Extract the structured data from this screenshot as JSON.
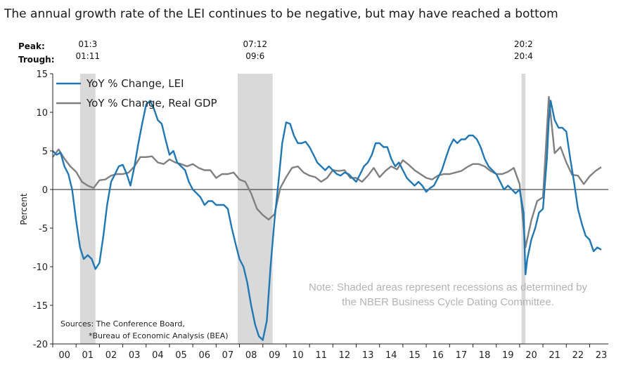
{
  "chart_data": {
    "type": "line",
    "title": "The annual growth rate of the LEI continues to be negative, but may have reached a bottom",
    "ylabel": "Percent",
    "ylim": [
      -20,
      15
    ],
    "yticks": [
      15,
      10,
      5,
      0,
      -5,
      -10,
      -15,
      -20
    ],
    "xlim": [
      2000.0,
      2023.8
    ],
    "x_tick_labels": [
      "00",
      "01",
      "02",
      "03",
      "04",
      "05",
      "06",
      "07",
      "08",
      "09",
      "10",
      "11",
      "12",
      "13",
      "14",
      "15",
      "16",
      "17",
      "18",
      "19",
      "20",
      "21",
      "22",
      "23"
    ],
    "peak_label": "Peak:",
    "trough_label": "Trough:",
    "recessions": [
      {
        "start": 2001.17,
        "end": 2001.83,
        "peak": "01:3",
        "trough": "01:11"
      },
      {
        "start": 2007.92,
        "end": 2009.42,
        "peak": "07:12",
        "trough": "09:6"
      },
      {
        "start": 2020.08,
        "end": 2020.25,
        "peak": "20:2",
        "trough": "20:4"
      }
    ],
    "legend_position": "top-left",
    "series": [
      {
        "name": "YoY % Change, LEI",
        "color": "#1f77b4",
        "points": [
          [
            2000.0,
            5.0
          ],
          [
            2000.17,
            4.5
          ],
          [
            2000.33,
            4.8
          ],
          [
            2000.5,
            3.0
          ],
          [
            2000.67,
            2.0
          ],
          [
            2000.83,
            0.0
          ],
          [
            2001.0,
            -4.0
          ],
          [
            2001.17,
            -7.5
          ],
          [
            2001.33,
            -9.0
          ],
          [
            2001.5,
            -8.5
          ],
          [
            2001.67,
            -9.0
          ],
          [
            2001.83,
            -10.3
          ],
          [
            2002.0,
            -9.5
          ],
          [
            2002.17,
            -6.0
          ],
          [
            2002.33,
            -2.0
          ],
          [
            2002.5,
            1.0
          ],
          [
            2002.67,
            2.0
          ],
          [
            2002.83,
            3.0
          ],
          [
            2003.0,
            3.2
          ],
          [
            2003.17,
            2.0
          ],
          [
            2003.33,
            0.5
          ],
          [
            2003.5,
            3.0
          ],
          [
            2003.67,
            6.0
          ],
          [
            2003.83,
            8.5
          ],
          [
            2004.0,
            11.0
          ],
          [
            2004.17,
            11.5
          ],
          [
            2004.33,
            10.5
          ],
          [
            2004.5,
            9.0
          ],
          [
            2004.67,
            8.5
          ],
          [
            2004.83,
            6.5
          ],
          [
            2005.0,
            4.5
          ],
          [
            2005.17,
            5.0
          ],
          [
            2005.33,
            3.5
          ],
          [
            2005.5,
            3.0
          ],
          [
            2005.67,
            2.5
          ],
          [
            2005.83,
            1.0
          ],
          [
            2006.0,
            0.0
          ],
          [
            2006.17,
            -0.5
          ],
          [
            2006.33,
            -1.0
          ],
          [
            2006.5,
            -2.0
          ],
          [
            2006.67,
            -1.5
          ],
          [
            2006.83,
            -1.5
          ],
          [
            2007.0,
            -2.0
          ],
          [
            2007.17,
            -2.0
          ],
          [
            2007.33,
            -2.0
          ],
          [
            2007.5,
            -2.5
          ],
          [
            2007.67,
            -5.0
          ],
          [
            2007.83,
            -7.0
          ],
          [
            2008.0,
            -9.0
          ],
          [
            2008.17,
            -10.0
          ],
          [
            2008.33,
            -12.0
          ],
          [
            2008.5,
            -15.0
          ],
          [
            2008.67,
            -17.5
          ],
          [
            2008.83,
            -19.0
          ],
          [
            2009.0,
            -19.5
          ],
          [
            2009.17,
            -17.0
          ],
          [
            2009.33,
            -10.0
          ],
          [
            2009.5,
            -4.0
          ],
          [
            2009.67,
            1.0
          ],
          [
            2009.83,
            6.0
          ],
          [
            2010.0,
            8.7
          ],
          [
            2010.17,
            8.5
          ],
          [
            2010.33,
            7.0
          ],
          [
            2010.5,
            6.0
          ],
          [
            2010.67,
            6.0
          ],
          [
            2010.83,
            6.2
          ],
          [
            2011.0,
            5.5
          ],
          [
            2011.17,
            4.5
          ],
          [
            2011.33,
            3.5
          ],
          [
            2011.5,
            3.0
          ],
          [
            2011.67,
            2.5
          ],
          [
            2011.83,
            3.0
          ],
          [
            2012.0,
            2.5
          ],
          [
            2012.17,
            2.0
          ],
          [
            2012.33,
            1.8
          ],
          [
            2012.5,
            2.2
          ],
          [
            2012.67,
            2.0
          ],
          [
            2012.83,
            1.5
          ],
          [
            2013.0,
            1.0
          ],
          [
            2013.17,
            2.0
          ],
          [
            2013.33,
            3.0
          ],
          [
            2013.5,
            3.5
          ],
          [
            2013.67,
            4.5
          ],
          [
            2013.83,
            6.0
          ],
          [
            2014.0,
            6.0
          ],
          [
            2014.17,
            5.5
          ],
          [
            2014.33,
            5.5
          ],
          [
            2014.5,
            4.0
          ],
          [
            2014.67,
            3.0
          ],
          [
            2014.83,
            3.5
          ],
          [
            2015.0,
            2.5
          ],
          [
            2015.17,
            1.5
          ],
          [
            2015.33,
            1.0
          ],
          [
            2015.5,
            0.5
          ],
          [
            2015.67,
            1.0
          ],
          [
            2015.83,
            0.5
          ],
          [
            2016.0,
            -0.3
          ],
          [
            2016.17,
            0.2
          ],
          [
            2016.33,
            0.5
          ],
          [
            2016.5,
            1.5
          ],
          [
            2016.67,
            2.5
          ],
          [
            2016.83,
            4.0
          ],
          [
            2017.0,
            5.5
          ],
          [
            2017.17,
            6.5
          ],
          [
            2017.33,
            6.0
          ],
          [
            2017.5,
            6.5
          ],
          [
            2017.67,
            6.5
          ],
          [
            2017.83,
            7.0
          ],
          [
            2018.0,
            7.0
          ],
          [
            2018.17,
            6.5
          ],
          [
            2018.33,
            5.5
          ],
          [
            2018.5,
            4.0
          ],
          [
            2018.67,
            3.0
          ],
          [
            2018.83,
            2.5
          ],
          [
            2019.0,
            2.0
          ],
          [
            2019.17,
            1.0
          ],
          [
            2019.33,
            0.0
          ],
          [
            2019.5,
            0.5
          ],
          [
            2019.67,
            0.0
          ],
          [
            2019.83,
            -0.5
          ],
          [
            2020.0,
            0.0
          ],
          [
            2020.17,
            -3.0
          ],
          [
            2020.25,
            -11.0
          ],
          [
            2020.33,
            -9.0
          ],
          [
            2020.5,
            -6.5
          ],
          [
            2020.67,
            -5.0
          ],
          [
            2020.83,
            -3.0
          ],
          [
            2021.0,
            -2.5
          ],
          [
            2021.17,
            4.0
          ],
          [
            2021.25,
            9.0
          ],
          [
            2021.33,
            11.5
          ],
          [
            2021.5,
            9.0
          ],
          [
            2021.67,
            8.0
          ],
          [
            2021.83,
            8.0
          ],
          [
            2022.0,
            7.5
          ],
          [
            2022.17,
            4.0
          ],
          [
            2022.33,
            1.0
          ],
          [
            2022.5,
            -2.5
          ],
          [
            2022.67,
            -4.5
          ],
          [
            2022.83,
            -6.0
          ],
          [
            2023.0,
            -6.5
          ],
          [
            2023.17,
            -8.0
          ],
          [
            2023.33,
            -7.5
          ],
          [
            2023.5,
            -7.8
          ]
        ]
      },
      {
        "name": "YoY % Change, Real GDP",
        "color": "#808080",
        "points": [
          [
            2000.0,
            4.2
          ],
          [
            2000.25,
            5.2
          ],
          [
            2000.5,
            4.0
          ],
          [
            2000.75,
            3.0
          ],
          [
            2001.0,
            2.3
          ],
          [
            2001.25,
            1.0
          ],
          [
            2001.5,
            0.5
          ],
          [
            2001.75,
            0.2
          ],
          [
            2002.0,
            1.2
          ],
          [
            2002.25,
            1.3
          ],
          [
            2002.5,
            1.8
          ],
          [
            2002.75,
            2.0
          ],
          [
            2003.0,
            2.0
          ],
          [
            2003.25,
            2.2
          ],
          [
            2003.5,
            3.0
          ],
          [
            2003.75,
            4.2
          ],
          [
            2004.0,
            4.2
          ],
          [
            2004.25,
            4.3
          ],
          [
            2004.5,
            3.5
          ],
          [
            2004.75,
            3.3
          ],
          [
            2005.0,
            3.9
          ],
          [
            2005.25,
            3.5
          ],
          [
            2005.5,
            3.3
          ],
          [
            2005.75,
            3.0
          ],
          [
            2006.0,
            3.3
          ],
          [
            2006.25,
            2.8
          ],
          [
            2006.5,
            2.5
          ],
          [
            2006.75,
            2.5
          ],
          [
            2007.0,
            1.5
          ],
          [
            2007.25,
            2.0
          ],
          [
            2007.5,
            2.0
          ],
          [
            2007.75,
            2.2
          ],
          [
            2008.0,
            1.3
          ],
          [
            2008.25,
            1.0
          ],
          [
            2008.5,
            -0.5
          ],
          [
            2008.75,
            -2.5
          ],
          [
            2009.0,
            -3.3
          ],
          [
            2009.25,
            -3.9
          ],
          [
            2009.5,
            -3.2
          ],
          [
            2009.75,
            0.2
          ],
          [
            2010.0,
            1.6
          ],
          [
            2010.25,
            2.8
          ],
          [
            2010.5,
            3.0
          ],
          [
            2010.75,
            2.2
          ],
          [
            2011.0,
            1.8
          ],
          [
            2011.25,
            1.6
          ],
          [
            2011.5,
            1.0
          ],
          [
            2011.75,
            1.5
          ],
          [
            2012.0,
            2.5
          ],
          [
            2012.25,
            2.4
          ],
          [
            2012.5,
            2.5
          ],
          [
            2012.75,
            1.5
          ],
          [
            2013.0,
            1.5
          ],
          [
            2013.25,
            1.0
          ],
          [
            2013.5,
            1.8
          ],
          [
            2013.75,
            2.8
          ],
          [
            2014.0,
            1.6
          ],
          [
            2014.25,
            2.4
          ],
          [
            2014.5,
            3.0
          ],
          [
            2014.75,
            2.6
          ],
          [
            2015.0,
            3.8
          ],
          [
            2015.25,
            3.2
          ],
          [
            2015.5,
            2.5
          ],
          [
            2015.75,
            2.0
          ],
          [
            2016.0,
            1.5
          ],
          [
            2016.25,
            1.3
          ],
          [
            2016.5,
            1.8
          ],
          [
            2016.75,
            2.0
          ],
          [
            2017.0,
            2.0
          ],
          [
            2017.25,
            2.2
          ],
          [
            2017.5,
            2.4
          ],
          [
            2017.75,
            2.9
          ],
          [
            2018.0,
            3.3
          ],
          [
            2018.25,
            3.3
          ],
          [
            2018.5,
            3.0
          ],
          [
            2018.75,
            2.4
          ],
          [
            2019.0,
            2.0
          ],
          [
            2019.25,
            2.0
          ],
          [
            2019.5,
            2.3
          ],
          [
            2019.75,
            2.8
          ],
          [
            2020.0,
            0.7
          ],
          [
            2020.25,
            -7.5
          ],
          [
            2020.5,
            -4.0
          ],
          [
            2020.75,
            -1.5
          ],
          [
            2021.0,
            -1.0
          ],
          [
            2021.25,
            12.0
          ],
          [
            2021.5,
            4.7
          ],
          [
            2021.75,
            5.5
          ],
          [
            2022.0,
            3.5
          ],
          [
            2022.25,
            1.9
          ],
          [
            2022.5,
            1.8
          ],
          [
            2022.75,
            0.7
          ],
          [
            2023.0,
            1.7
          ],
          [
            2023.25,
            2.4
          ],
          [
            2023.5,
            2.9
          ]
        ]
      }
    ],
    "annotation": [
      "Note: Shaded areas represent recessions as determined by",
      "the NBER Business Cycle Dating Committee."
    ],
    "sources": [
      "Sources: The Conference Board,",
      "*Bureau of Economic Analysis (BEA)"
    ]
  }
}
